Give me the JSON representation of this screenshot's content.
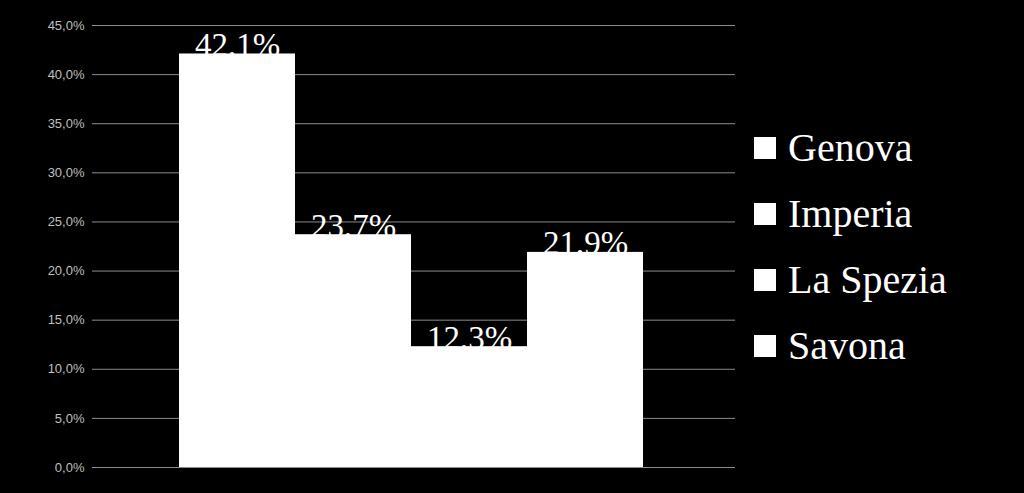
{
  "chart_data": {
    "type": "bar",
    "categories": [
      null
    ],
    "series": [
      {
        "name": "Genova",
        "color": "#ffffff",
        "values": [
          42.1
        ],
        "value_labels": [
          "42,1%"
        ]
      },
      {
        "name": "Imperia",
        "color": "#ffffff",
        "values": [
          23.7
        ],
        "value_labels": [
          "23,7%"
        ]
      },
      {
        "name": "La Spezia",
        "color": "#ffffff",
        "values": [
          12.3
        ],
        "value_labels": [
          "12,3%"
        ]
      },
      {
        "name": "Savona",
        "color": "#ffffff",
        "values": [
          21.9
        ],
        "value_labels": [
          "21,9%"
        ]
      }
    ],
    "ylim": [
      0,
      45
    ],
    "yticks": [
      {
        "value": 0,
        "label": "0,0%"
      },
      {
        "value": 5,
        "label": "5,0%"
      },
      {
        "value": 10,
        "label": "10,0%"
      },
      {
        "value": 15,
        "label": "15,0%"
      },
      {
        "value": 20,
        "label": "20,0%"
      },
      {
        "value": 25,
        "label": "25,0%"
      },
      {
        "value": 30,
        "label": "30,0%"
      },
      {
        "value": 35,
        "label": "35,0%"
      },
      {
        "value": 40,
        "label": "40,0%"
      },
      {
        "value": 45,
        "label": "45,0%"
      }
    ],
    "grid": true,
    "data_labels": true,
    "legend": "right",
    "tick_labels": "y"
  }
}
